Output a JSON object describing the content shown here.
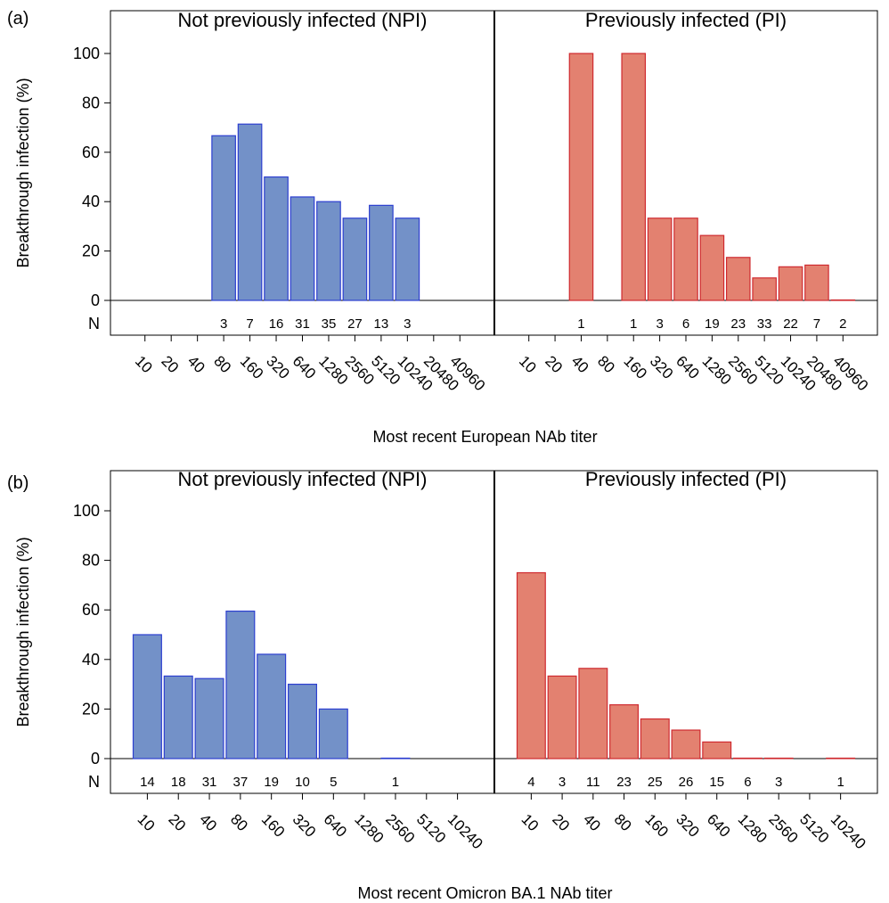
{
  "colors": {
    "npi": "#7391c8",
    "npi_stroke": "#2d3fd0",
    "pi": "#e38170",
    "pi_stroke": "#cf2a2f"
  },
  "chart_data": [
    {
      "type": "bar",
      "panel": "(a)",
      "xlabel": "Most recent European NAb titer",
      "ylabel": "Breakthrough infection (%)",
      "ylim": [
        0,
        100
      ],
      "yticks": [
        0,
        20,
        40,
        60,
        80,
        100
      ],
      "n_row_label": "N",
      "categories": [
        "10",
        "20",
        "40",
        "80",
        "160",
        "320",
        "640",
        "1280",
        "2560",
        "5120",
        "10240",
        "20480",
        "40960"
      ],
      "series": [
        {
          "name": "Not previously infected (NPI)",
          "color_key": "npi",
          "values": [
            null,
            null,
            null,
            66.7,
            71.4,
            50.0,
            41.9,
            40.0,
            33.3,
            38.5,
            33.3,
            null,
            null
          ],
          "n": [
            "",
            "",
            "",
            "3",
            "7",
            "16",
            "31",
            "35",
            "27",
            "13",
            "3",
            "",
            ""
          ]
        },
        {
          "name": "Previously infected (PI)",
          "color_key": "pi",
          "values": [
            null,
            null,
            100.0,
            null,
            100.0,
            33.3,
            33.3,
            26.3,
            17.4,
            9.1,
            13.6,
            14.3,
            0.0
          ],
          "n": [
            "",
            "",
            "1",
            "",
            "1",
            "3",
            "6",
            "19",
            "23",
            "33",
            "22",
            "7",
            "2"
          ]
        }
      ]
    },
    {
      "type": "bar",
      "panel": "(b)",
      "xlabel": "Most recent Omicron BA.1 NAb titer",
      "ylabel": "Breakthrough infection (%)",
      "ylim": [
        0,
        100
      ],
      "yticks": [
        0,
        20,
        40,
        60,
        80,
        100
      ],
      "n_row_label": "N",
      "categories": [
        "10",
        "20",
        "40",
        "80",
        "160",
        "320",
        "640",
        "1280",
        "2560",
        "5120",
        "10240"
      ],
      "series": [
        {
          "name": "Not previously infected (NPI)",
          "color_key": "npi",
          "values": [
            50.0,
            33.3,
            32.3,
            59.5,
            42.1,
            30.0,
            20.0,
            null,
            0.0,
            null,
            null
          ],
          "n": [
            "14",
            "18",
            "31",
            "37",
            "19",
            "10",
            "5",
            "",
            "1",
            "",
            ""
          ]
        },
        {
          "name": "Previously infected (PI)",
          "color_key": "pi",
          "values": [
            75.0,
            33.3,
            36.4,
            21.7,
            16.0,
            11.5,
            6.7,
            0.0,
            0.0,
            null,
            0.0
          ],
          "n": [
            "4",
            "3",
            "11",
            "23",
            "25",
            "26",
            "15",
            "6",
            "3",
            "",
            "1"
          ]
        }
      ]
    }
  ]
}
